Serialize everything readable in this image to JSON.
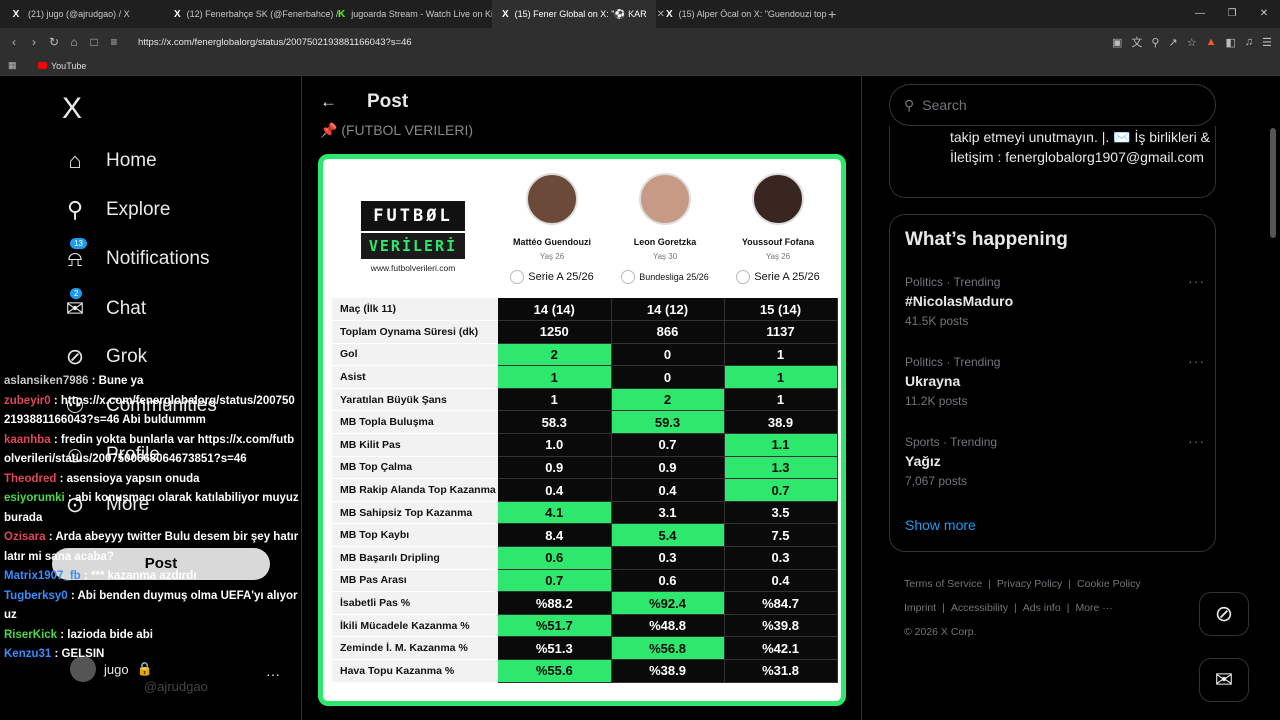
{
  "browser": {
    "tabs": [
      {
        "favicon": "X",
        "label": "(21) jugo (@ajrudgao) / X",
        "active": false
      },
      {
        "favicon": "X",
        "label": "(12) Fenerbahçe SK (@Fenerbahce) /",
        "active": false
      },
      {
        "favicon": "K",
        "label": "jugoarda Stream - Watch Live on Kick",
        "active": false
      },
      {
        "favicon": "X",
        "label": "(15) Fener Global on X: \"⚽ KAR",
        "active": true
      },
      {
        "favicon": "X",
        "label": "(15) Alper Öcal on X: \"Guendouzi top",
        "active": false
      }
    ],
    "new_tab_label": "+",
    "url": "https://x.com/fenerglobalorg/status/2007502193881166043?s=46",
    "bookmark_youtube": "YouTube"
  },
  "sidebar": {
    "logo": "X",
    "nav": [
      {
        "label": "Home",
        "icon": "home-icon"
      },
      {
        "label": "Explore",
        "icon": "search-icon"
      },
      {
        "label": "Notifications",
        "icon": "bell-icon",
        "badge": "13"
      },
      {
        "label": "Chat",
        "icon": "mail-icon",
        "badge": "2"
      },
      {
        "label": "Grok",
        "icon": "grok-icon"
      },
      {
        "label": "Communities",
        "icon": "people-icon"
      },
      {
        "label": "Profile",
        "icon": "person-icon"
      },
      {
        "label": "More",
        "icon": "more-icon"
      }
    ],
    "post_button": "Post",
    "account_name": "jugo",
    "account_handle": "@ajrudgao"
  },
  "chat": [
    {
      "user": "aslansiken7986",
      "user_color": "#c7c7c7",
      "text": "Bune ya"
    },
    {
      "user": "zubeyir0",
      "user_color": "#e0455a",
      "text": "https://x.com/fenerglobalorg/status/2007502193881166043?s=46 Abi buldummm"
    },
    {
      "user": "kaanhba",
      "user_color": "#e0455a",
      "text": "fredin yokta bunlarla var https://x.com/futbolverileri/status/2007500668064673851?s=46"
    },
    {
      "user": "Theodred",
      "user_color": "#e0455a",
      "text": "asensioya yapsın onuda"
    },
    {
      "user": "esiyorumki",
      "user_color": "#4ad84a",
      "text": "abi konuşmacı olarak katılabiliyor muyuz burada"
    },
    {
      "user": "Ozisara",
      "user_color": "#e0455a",
      "text": "Arda abeyyy twitter Bulu desem bir şey hatırlatır mi sana acaba?"
    },
    {
      "user": "Matrix1907_fb",
      "user_color": "#3a8dff",
      "text": "*** kazanma azdırdı"
    },
    {
      "user": "Tugberksy0",
      "user_color": "#3a8dff",
      "text": "Abi benden duymuş olma UEFA'yı alıyoruz"
    },
    {
      "user": "RiserKick",
      "user_color": "#4ad84a",
      "text": "lazioda bide abi"
    },
    {
      "user": "Kenzu31",
      "user_color": "#3a8dff",
      "text": "GELSIN"
    }
  ],
  "main": {
    "back_label": "←",
    "title": "Post",
    "faded_text": "(FUTBOL VERILERI)",
    "card": {
      "brand_line1": "FUTBØL",
      "brand_line2": "VERİLERİ",
      "brand_url": "www.futbolverileri.com",
      "players": [
        {
          "name": "Mattéo Guendouzi",
          "age": "Yaş 26",
          "league": "Serie A 25/26",
          "face_color": "#6b4a3a"
        },
        {
          "name": "Leon Goretzka",
          "age": "Yaş 30",
          "league": "Bundesliga 25/26",
          "face_color": "#c79a86"
        },
        {
          "name": "Youssouf Fofana",
          "age": "Yaş 26",
          "league": "Serie A 25/26",
          "face_color": "#3a2620"
        }
      ],
      "rows": [
        {
          "label": "Maç (İlk 11)",
          "values": [
            "14 (14)",
            "14 (12)",
            "15 (14)"
          ],
          "hl": [
            false,
            false,
            false
          ]
        },
        {
          "label": "Toplam Oynama Süresi (dk)",
          "values": [
            "1250",
            "866",
            "1137"
          ],
          "hl": [
            false,
            false,
            false
          ]
        },
        {
          "label": "Gol",
          "values": [
            "2",
            "0",
            "1"
          ],
          "hl": [
            true,
            false,
            false
          ]
        },
        {
          "label": "Asist",
          "values": [
            "1",
            "0",
            "1"
          ],
          "hl": [
            true,
            false,
            true
          ]
        },
        {
          "label": "Yaratılan Büyük Şans",
          "values": [
            "1",
            "2",
            "1"
          ],
          "hl": [
            false,
            true,
            false
          ]
        },
        {
          "label": "MB Topla Buluşma",
          "values": [
            "58.3",
            "59.3",
            "38.9"
          ],
          "hl": [
            false,
            true,
            false
          ]
        },
        {
          "label": "MB Kilit Pas",
          "values": [
            "1.0",
            "0.7",
            "1.1"
          ],
          "hl": [
            false,
            false,
            true
          ]
        },
        {
          "label": "MB Top Çalma",
          "values": [
            "0.9",
            "0.9",
            "1.3"
          ],
          "hl": [
            false,
            false,
            true
          ]
        },
        {
          "label": "MB Rakip Alanda Top Kazanma",
          "values": [
            "0.4",
            "0.4",
            "0.7"
          ],
          "hl": [
            false,
            false,
            true
          ]
        },
        {
          "label": "MB Sahipsiz Top Kazanma",
          "values": [
            "4.1",
            "3.1",
            "3.5"
          ],
          "hl": [
            true,
            false,
            false
          ]
        },
        {
          "label": "MB Top Kaybı",
          "values": [
            "8.4",
            "5.4",
            "7.5"
          ],
          "hl": [
            false,
            true,
            false
          ]
        },
        {
          "label": "MB Başarılı Dripling",
          "values": [
            "0.6",
            "0.3",
            "0.3"
          ],
          "hl": [
            true,
            false,
            false
          ]
        },
        {
          "label": "MB Pas Arası",
          "values": [
            "0.7",
            "0.6",
            "0.4"
          ],
          "hl": [
            true,
            false,
            false
          ]
        },
        {
          "label": "İsabetli Pas %",
          "values": [
            "%88.2",
            "%92.4",
            "%84.7"
          ],
          "hl": [
            false,
            true,
            false
          ]
        },
        {
          "label": "İkili Mücadele Kazanma %",
          "values": [
            "%51.7",
            "%48.8",
            "%39.8"
          ],
          "hl": [
            true,
            false,
            false
          ]
        },
        {
          "label": "Zeminde İ. M. Kazanma %",
          "values": [
            "%51.3",
            "%56.8",
            "%42.1"
          ],
          "hl": [
            false,
            true,
            false
          ]
        },
        {
          "label": "Hava Topu Kazanma %",
          "values": [
            "%55.6",
            "%38.9",
            "%31.8"
          ],
          "hl": [
            true,
            false,
            false
          ]
        }
      ]
    }
  },
  "right": {
    "search_placeholder": "Search",
    "bio_text": "takip etmeyi unutmayın. |. ✉️ İş birlikleri & İletişim : fenerglobalorg1907@gmail.com",
    "happening_title": "What’s happening",
    "trends": [
      {
        "meta": "Politics · Trending",
        "name": "#NicolasMaduro",
        "count": "41.5K posts"
      },
      {
        "meta": "Politics · Trending",
        "name": "Ukrayna",
        "count": "11.2K posts"
      },
      {
        "meta": "Sports · Trending",
        "name": "Yağız",
        "count": "7,067 posts"
      }
    ],
    "show_more": "Show more",
    "footer": [
      "Terms of Service",
      "Privacy Policy",
      "Cookie Policy",
      "Imprint",
      "Accessibility",
      "Ads info",
      "More ···"
    ],
    "copyright": "© 2026 X Corp."
  }
}
